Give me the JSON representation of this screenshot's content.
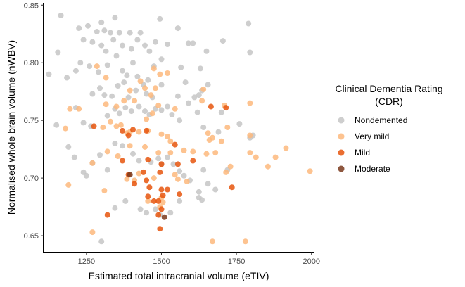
{
  "chart_data": {
    "type": "scatter",
    "xlabel": "Estimated total intracranial volume (eTIV)",
    "ylabel": "Normalised whole brain volume (nWBV)",
    "xlim": [
      1105,
      2010
    ],
    "ylim": [
      0.636,
      0.852
    ],
    "x_ticks": [
      1250,
      1500,
      1750,
      2000
    ],
    "y_ticks": [
      0.65,
      0.7,
      0.75,
      0.8,
      0.85
    ],
    "x_tick_labels": [
      "1250",
      "1500",
      "1750",
      "2000"
    ],
    "y_tick_labels": [
      "0.65",
      "0.70",
      "0.75",
      "0.80",
      "0.85"
    ],
    "grid": false,
    "legend": {
      "title_line1": "Clinical Dementia Rating",
      "title_line2": "(CDR)",
      "placement": "right"
    },
    "series": [
      {
        "name": "Nondemented",
        "color": "#c6c6c6",
        "points": [
          [
            1165,
            0.841
          ],
          [
            1255,
            0.832
          ],
          [
            1300,
            0.835
          ],
          [
            1345,
            0.839
          ],
          [
            1225,
            0.83
          ],
          [
            1285,
            0.827
          ],
          [
            1310,
            0.828
          ],
          [
            1330,
            0.826
          ],
          [
            1360,
            0.826
          ],
          [
            1395,
            0.826
          ],
          [
            1430,
            0.826
          ],
          [
            1495,
            0.838
          ],
          [
            1555,
            0.83
          ],
          [
            1605,
            0.817
          ],
          [
            1705,
            0.819
          ],
          [
            1790,
            0.834
          ],
          [
            1240,
            0.82
          ],
          [
            1270,
            0.818
          ],
          [
            1300,
            0.815
          ],
          [
            1315,
            0.81
          ],
          [
            1340,
            0.82
          ],
          [
            1370,
            0.815
          ],
          [
            1400,
            0.812
          ],
          [
            1420,
            0.82
          ],
          [
            1445,
            0.815
          ],
          [
            1460,
            0.81
          ],
          [
            1480,
            0.818
          ],
          [
            1520,
            0.816
          ],
          [
            1590,
            0.817
          ],
          [
            1650,
            0.81
          ],
          [
            1795,
            0.809
          ],
          [
            1155,
            0.809
          ],
          [
            1125,
            0.79
          ],
          [
            1185,
            0.787
          ],
          [
            1215,
            0.793
          ],
          [
            1230,
            0.8
          ],
          [
            1260,
            0.797
          ],
          [
            1290,
            0.792
          ],
          [
            1320,
            0.798
          ],
          [
            1350,
            0.806
          ],
          [
            1370,
            0.793
          ],
          [
            1385,
            0.789
          ],
          [
            1405,
            0.8
          ],
          [
            1420,
            0.788
          ],
          [
            1440,
            0.781
          ],
          [
            1455,
            0.785
          ],
          [
            1475,
            0.797
          ],
          [
            1500,
            0.803
          ],
          [
            1565,
            0.796
          ],
          [
            1580,
            0.783
          ],
          [
            1630,
            0.795
          ],
          [
            1270,
            0.773
          ],
          [
            1295,
            0.778
          ],
          [
            1310,
            0.772
          ],
          [
            1335,
            0.771
          ],
          [
            1355,
            0.78
          ],
          [
            1375,
            0.783
          ],
          [
            1390,
            0.77
          ],
          [
            1415,
            0.776
          ],
          [
            1450,
            0.773
          ],
          [
            1470,
            0.77
          ],
          [
            1500,
            0.781
          ],
          [
            1555,
            0.771
          ],
          [
            1610,
            0.77
          ],
          [
            1625,
            0.772
          ],
          [
            1635,
            0.776
          ],
          [
            1655,
            0.781
          ],
          [
            1150,
            0.746
          ],
          [
            1215,
            0.761
          ],
          [
            1240,
            0.748
          ],
          [
            1265,
            0.745
          ],
          [
            1320,
            0.754
          ],
          [
            1345,
            0.76
          ],
          [
            1360,
            0.756
          ],
          [
            1380,
            0.761
          ],
          [
            1400,
            0.758
          ],
          [
            1425,
            0.762
          ],
          [
            1445,
            0.758
          ],
          [
            1460,
            0.755
          ],
          [
            1480,
            0.76
          ],
          [
            1500,
            0.759
          ],
          [
            1520,
            0.762
          ],
          [
            1535,
            0.755
          ],
          [
            1560,
            0.75
          ],
          [
            1590,
            0.765
          ],
          [
            1620,
            0.757
          ],
          [
            1640,
            0.744
          ],
          [
            1690,
            0.74
          ],
          [
            1700,
            0.757
          ],
          [
            1760,
            0.747
          ],
          [
            1795,
            0.735
          ],
          [
            1805,
            0.737
          ],
          [
            1190,
            0.727
          ],
          [
            1210,
            0.718
          ],
          [
            1240,
            0.705
          ],
          [
            1250,
            0.702
          ],
          [
            1270,
            0.713
          ],
          [
            1295,
            0.72
          ],
          [
            1320,
            0.707
          ],
          [
            1345,
            0.73
          ],
          [
            1370,
            0.728
          ],
          [
            1405,
            0.721
          ],
          [
            1425,
            0.715
          ],
          [
            1465,
            0.714
          ],
          [
            1490,
            0.717
          ],
          [
            1500,
            0.712
          ],
          [
            1520,
            0.718
          ],
          [
            1540,
            0.712
          ],
          [
            1560,
            0.706
          ],
          [
            1575,
            0.702
          ],
          [
            1595,
            0.698
          ],
          [
            1625,
            0.688
          ],
          [
            1640,
            0.707
          ],
          [
            1655,
            0.695
          ],
          [
            1680,
            0.69
          ],
          [
            1720,
            0.707
          ],
          [
            1345,
            0.674
          ],
          [
            1380,
            0.68
          ],
          [
            1430,
            0.673
          ],
          [
            1450,
            0.67
          ],
          [
            1480,
            0.673
          ],
          [
            1495,
            0.668
          ],
          [
            1530,
            0.67
          ],
          [
            1560,
            0.68
          ],
          [
            1625,
            0.683
          ],
          [
            1635,
            0.681
          ],
          [
            1300,
            0.645
          ]
        ]
      },
      {
        "name": "Very mild",
        "color": "#fdb97d",
        "points": [
          [
            1285,
            0.797
          ],
          [
            1315,
            0.787
          ],
          [
            1475,
            0.795
          ],
          [
            1495,
            0.79
          ],
          [
            1430,
            0.784
          ],
          [
            1445,
            0.778
          ],
          [
            1465,
            0.772
          ],
          [
            1480,
            0.778
          ],
          [
            1520,
            0.791
          ],
          [
            1395,
            0.776
          ],
          [
            1640,
            0.777
          ],
          [
            1635,
            0.767
          ],
          [
            1710,
            0.763
          ],
          [
            1795,
            0.765
          ],
          [
            1195,
            0.76
          ],
          [
            1225,
            0.76
          ],
          [
            1315,
            0.764
          ],
          [
            1350,
            0.762
          ],
          [
            1375,
            0.767
          ],
          [
            1410,
            0.767
          ],
          [
            1450,
            0.751
          ],
          [
            1470,
            0.756
          ],
          [
            1490,
            0.763
          ],
          [
            1545,
            0.76
          ],
          [
            1330,
            0.749
          ],
          [
            1305,
            0.744
          ],
          [
            1350,
            0.745
          ],
          [
            1365,
            0.746
          ],
          [
            1385,
            0.739
          ],
          [
            1395,
            0.74
          ],
          [
            1425,
            0.74
          ],
          [
            1455,
            0.741
          ],
          [
            1500,
            0.738
          ],
          [
            1520,
            0.736
          ],
          [
            1530,
            0.732
          ],
          [
            1660,
            0.733
          ],
          [
            1655,
            0.739
          ],
          [
            1670,
            0.735
          ],
          [
            1720,
            0.744
          ],
          [
            1795,
            0.737
          ],
          [
            1180,
            0.743
          ],
          [
            1320,
            0.723
          ],
          [
            1355,
            0.719
          ],
          [
            1395,
            0.728
          ],
          [
            1445,
            0.727
          ],
          [
            1490,
            0.722
          ],
          [
            1530,
            0.722
          ],
          [
            1575,
            0.724
          ],
          [
            1605,
            0.723
          ],
          [
            1650,
            0.721
          ],
          [
            1680,
            0.722
          ],
          [
            1700,
            0.732
          ],
          [
            1795,
            0.722
          ],
          [
            1815,
            0.718
          ],
          [
            1880,
            0.718
          ],
          [
            1915,
            0.726
          ],
          [
            1855,
            0.71
          ],
          [
            1995,
            0.706
          ],
          [
            1730,
            0.71
          ],
          [
            1715,
            0.705
          ],
          [
            1190,
            0.694
          ],
          [
            1310,
            0.689
          ],
          [
            1385,
            0.699
          ],
          [
            1410,
            0.698
          ],
          [
            1425,
            0.704
          ],
          [
            1475,
            0.7
          ],
          [
            1545,
            0.703
          ],
          [
            1555,
            0.699
          ],
          [
            1585,
            0.697
          ],
          [
            1270,
            0.713
          ],
          [
            1500,
            0.683
          ],
          [
            1505,
            0.679
          ],
          [
            1495,
            0.675
          ],
          [
            1270,
            0.653
          ],
          [
            1670,
            0.645
          ],
          [
            1780,
            0.645
          ],
          [
            1455,
            0.68
          ]
        ]
      },
      {
        "name": "Mild",
        "color": "#e6550d",
        "points": [
          [
            1665,
            0.762
          ],
          [
            1715,
            0.761
          ],
          [
            1275,
            0.745
          ],
          [
            1370,
            0.741
          ],
          [
            1390,
            0.737
          ],
          [
            1405,
            0.742
          ],
          [
            1450,
            0.741
          ],
          [
            1500,
            0.712
          ],
          [
            1370,
            0.715
          ],
          [
            1455,
            0.716
          ],
          [
            1440,
            0.705
          ],
          [
            1495,
            0.705
          ],
          [
            1555,
            0.712
          ],
          [
            1605,
            0.715
          ],
          [
            1545,
            0.729
          ],
          [
            1390,
            0.703
          ],
          [
            1410,
            0.695
          ],
          [
            1450,
            0.698
          ],
          [
            1460,
            0.692
          ],
          [
            1500,
            0.69
          ],
          [
            1520,
            0.69
          ],
          [
            1505,
            0.685
          ],
          [
            1490,
            0.68
          ],
          [
            1475,
            0.68
          ],
          [
            1455,
            0.684
          ],
          [
            1560,
            0.686
          ],
          [
            1735,
            0.692
          ],
          [
            1320,
            0.668
          ],
          [
            1490,
            0.668
          ],
          [
            1500,
            0.673
          ],
          [
            1495,
            0.656
          ]
        ]
      },
      {
        "name": "Moderate",
        "color": "#7a3a1d",
        "points": [
          [
            1395,
            0.703
          ],
          [
            1510,
            0.666
          ]
        ]
      }
    ]
  }
}
